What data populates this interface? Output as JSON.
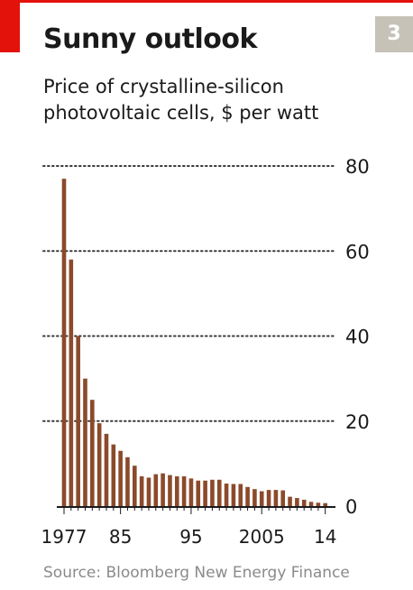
{
  "header": {
    "title": "Sunny outlook",
    "number": "3",
    "subtitle_line1": "Price of crystalline-silicon",
    "subtitle_line2": "photovoltaic cells, $ per watt"
  },
  "source": "Source: Bloomberg New Energy Finance",
  "colors": {
    "brand_red": "#e3120b",
    "bar": "#8b4a2b",
    "number_tag": "#c7c2b8",
    "grid": "#3a3a3a",
    "source_text": "#8a8a8a"
  },
  "chart_data": {
    "type": "bar",
    "title": "Sunny outlook",
    "subtitle": "Price of crystalline-silicon photovoltaic cells, $ per watt",
    "xlabel": "",
    "ylabel": "",
    "x": [
      1977,
      1978,
      1979,
      1980,
      1981,
      1982,
      1983,
      1984,
      1985,
      1986,
      1987,
      1988,
      1989,
      1990,
      1991,
      1992,
      1993,
      1994,
      1995,
      1996,
      1997,
      1998,
      1999,
      2000,
      2001,
      2002,
      2003,
      2004,
      2005,
      2006,
      2007,
      2008,
      2009,
      2010,
      2011,
      2012,
      2013,
      2014
    ],
    "values": [
      77,
      58,
      40,
      30,
      25,
      19.5,
      17,
      14.5,
      13,
      11.5,
      9.5,
      7,
      6.7,
      7.5,
      7.7,
      7.3,
      7,
      7,
      6.5,
      6,
      6,
      6.2,
      6.2,
      5.3,
      5.2,
      5.2,
      4.5,
      4,
      3.5,
      3.8,
      3.8,
      3.7,
      2.2,
      1.9,
      1.5,
      1,
      0.8,
      0.7
    ],
    "ylim": [
      0,
      80
    ],
    "yticks": [
      0,
      20,
      40,
      60,
      80
    ],
    "xtick_labels": [
      {
        "year": 1977,
        "label": "1977"
      },
      {
        "year": 1985,
        "label": "85"
      },
      {
        "year": 1995,
        "label": "95"
      },
      {
        "year": 2005,
        "label": "2005"
      },
      {
        "year": 2014,
        "label": "14"
      }
    ],
    "yaxis_position": "right",
    "grid": true,
    "grid_style": "dotted"
  }
}
